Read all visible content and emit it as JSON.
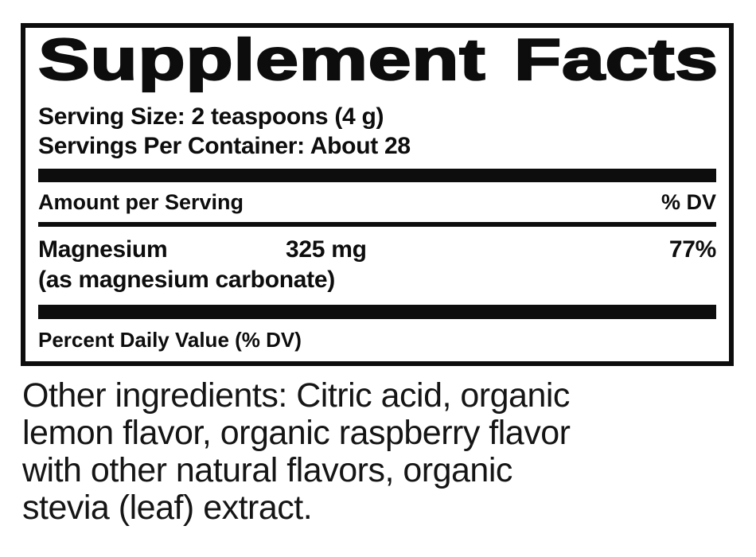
{
  "panel": {
    "title": "Supplement Facts",
    "serving_size": {
      "label": "Serving Size:",
      "value": "2 teaspoons (4 g)"
    },
    "servings_per_container": {
      "label": "Servings Per Container:",
      "value": "About 28"
    },
    "columns": {
      "amount": "Amount per Serving",
      "dv": "% DV"
    },
    "nutrients": [
      {
        "name": "Magnesium",
        "detail": "(as magnesium carbonate)",
        "amount": "325 mg",
        "daily_value": "77%"
      }
    ],
    "footnote": "Percent Daily Value (% DV)"
  },
  "other_ingredients": {
    "full_text": "Other ingredients: Citric acid, organic lemon flavor, organic raspberry flavor with other natural flavors, organic stevia (leaf) extract.",
    "lines": [
      "Other ingredients: Citric acid, organic",
      "lemon flavor, organic raspberry flavor",
      "with other natural flavors, organic",
      "stevia (leaf) extract."
    ]
  },
  "colors": {
    "ink": "#0d0d0d",
    "background": "#ffffff"
  }
}
